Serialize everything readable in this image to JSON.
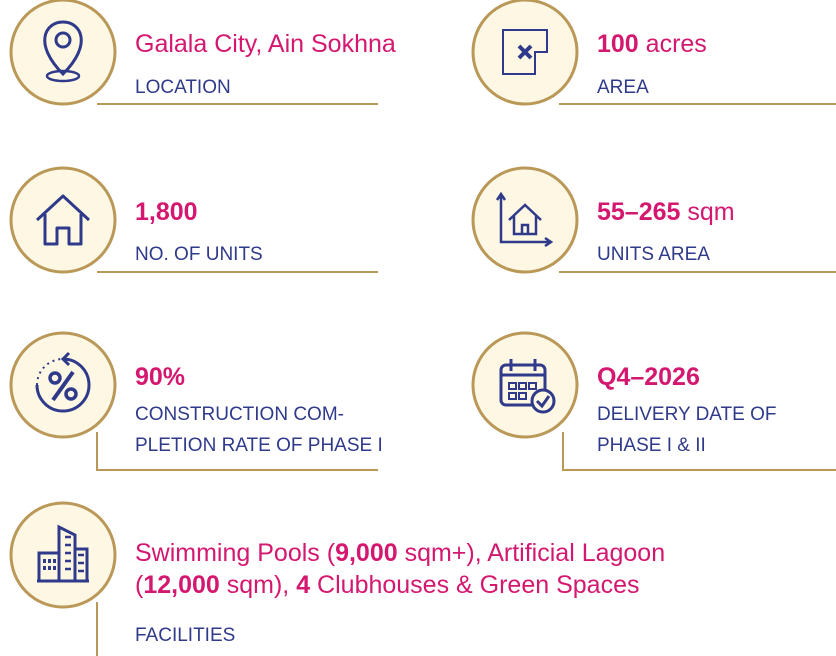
{
  "items": [
    {
      "value": [
        {
          "text": "Galala City, Ain Sokhna",
          "bold": false
        }
      ],
      "label": [
        "LOCATION"
      ]
    },
    {
      "value": [
        {
          "text": "100",
          "bold": true
        },
        {
          "text": " acres",
          "bold": false
        }
      ],
      "label": [
        "AREA"
      ]
    },
    {
      "value": [
        {
          "text": "1,800",
          "bold": true
        }
      ],
      "label": [
        "NO. OF UNITS"
      ]
    },
    {
      "value": [
        {
          "text": "55–265",
          "bold": true
        },
        {
          "text": " sqm",
          "bold": false
        }
      ],
      "label": [
        "UNITS AREA"
      ]
    },
    {
      "value": [
        {
          "text": "90%",
          "bold": true
        }
      ],
      "label": [
        "CONSTRUCTION COM-",
        "PLETION RATE OF PHASE I"
      ]
    },
    {
      "value": [
        {
          "text": "Q4–2026",
          "bold": true
        }
      ],
      "label": [
        "DELIVERY DATE OF",
        "PHASE I & II"
      ]
    },
    {
      "value_lines": [
        [
          {
            "text": "Swimming Pools (",
            "bold": false
          },
          {
            "text": "9,000",
            "bold": true
          },
          {
            "text": " sqm+), Artificial Lagoon",
            "bold": false
          }
        ],
        [
          {
            "text": "(",
            "bold": false
          },
          {
            "text": "12,000",
            "bold": true
          },
          {
            "text": " sqm), ",
            "bold": false
          },
          {
            "text": "4",
            "bold": true
          },
          {
            "text": " Clubhouses & Green Spaces",
            "bold": false
          }
        ]
      ],
      "label": [
        "FACILITIES"
      ]
    }
  ]
}
